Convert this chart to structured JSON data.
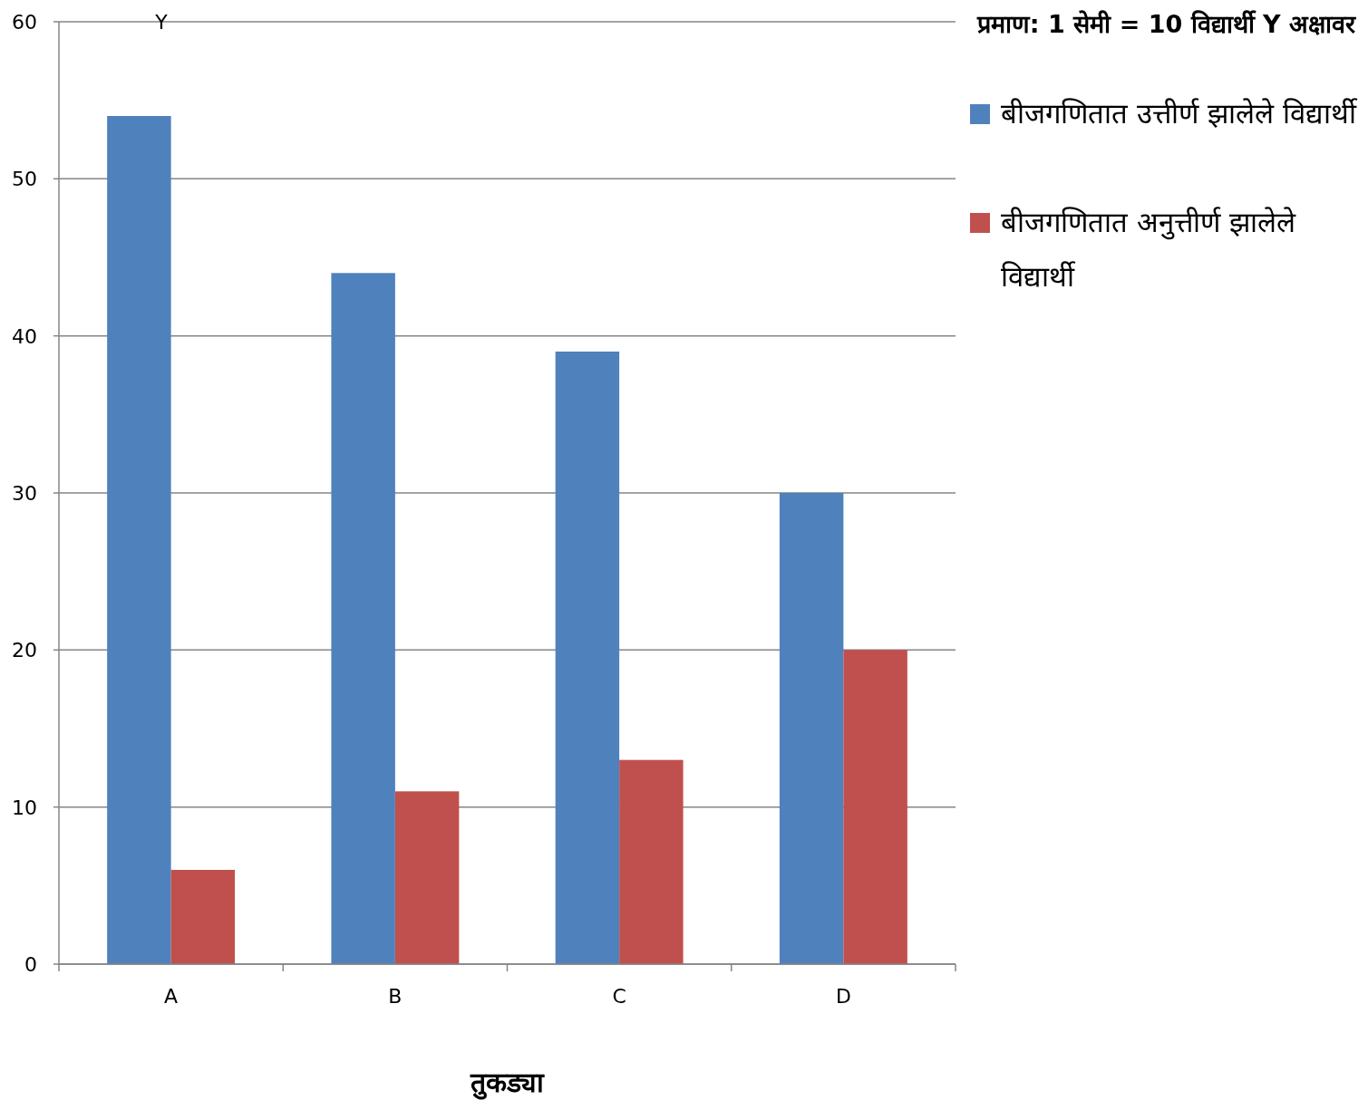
{
  "chart_data": {
    "type": "bar",
    "annotations": [
      "प्रमाण: 1 सेमी = 10 विद्यार्थी  Y अक्षावर"
    ],
    "xlabel": "तुकड्या",
    "ylabel": "Y",
    "categories": [
      "A",
      "B",
      "C",
      "D"
    ],
    "series": [
      {
        "name": "बीजगणितात उत्तीर्ण झालेले विद्यार्थी",
        "color": "#4f81bd",
        "values": [
          54,
          44,
          39,
          30
        ]
      },
      {
        "name": "बीजगणितात अनुत्तीर्ण झालेले विद्यार्थी",
        "color": "#c0504d",
        "values": [
          6,
          11,
          13,
          20
        ]
      }
    ],
    "ylim": [
      0,
      60
    ],
    "yticks": [
      0,
      10,
      20,
      30,
      40,
      50,
      60
    ],
    "grid": "y",
    "legend": "right"
  }
}
